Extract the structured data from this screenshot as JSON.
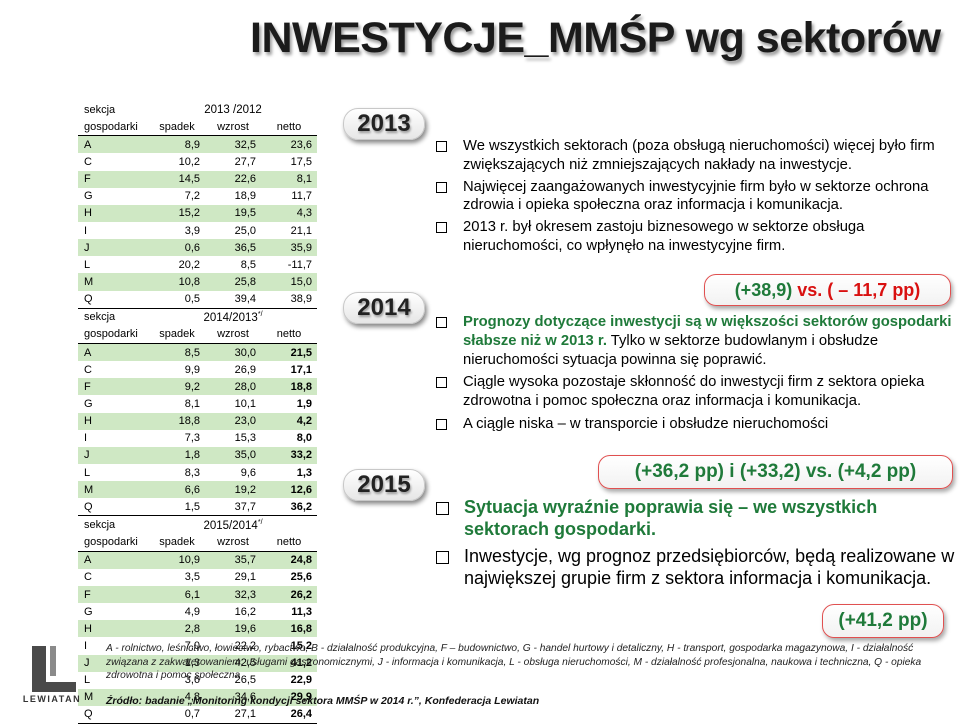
{
  "title": "INWESTYCJE_MMŚP wg sektorów",
  "table": {
    "sec_label_1": "sekcja",
    "sec_label_2": "gospodarki",
    "col_headers": [
      "spadek",
      "wzrost",
      "netto"
    ],
    "blocks": [
      {
        "period": "2013 /2012",
        "sup": "",
        "rows": [
          [
            "A",
            "8,9",
            "32,5",
            "23,6"
          ],
          [
            "C",
            "10,2",
            "27,7",
            "17,5"
          ],
          [
            "F",
            "14,5",
            "22,6",
            "8,1"
          ],
          [
            "G",
            "7,2",
            "18,9",
            "11,7"
          ],
          [
            "H",
            "15,2",
            "19,5",
            "4,3"
          ],
          [
            "I",
            "3,9",
            "25,0",
            "21,1"
          ],
          [
            "J",
            "0,6",
            "36,5",
            "35,9"
          ],
          [
            "L",
            "20,2",
            "8,5",
            "-11,7"
          ],
          [
            "M",
            "10,8",
            "25,8",
            "15,0"
          ],
          [
            "Q",
            "0,5",
            "39,4",
            "38,9"
          ]
        ]
      },
      {
        "period": "2014/2013",
        "sup": "*/",
        "rows": [
          [
            "A",
            "8,5",
            "30,0",
            "21,5"
          ],
          [
            "C",
            "9,9",
            "26,9",
            "17,1"
          ],
          [
            "F",
            "9,2",
            "28,0",
            "18,8"
          ],
          [
            "G",
            "8,1",
            "10,1",
            "1,9"
          ],
          [
            "H",
            "18,8",
            "23,0",
            "4,2"
          ],
          [
            "I",
            "7,3",
            "15,3",
            "8,0"
          ],
          [
            "J",
            "1,8",
            "35,0",
            "33,2"
          ],
          [
            "L",
            "8,3",
            "9,6",
            "1,3"
          ],
          [
            "M",
            "6,6",
            "19,2",
            "12,6"
          ],
          [
            "Q",
            "1,5",
            "37,7",
            "36,2"
          ]
        ]
      },
      {
        "period": "2015/2014",
        "sup": "*/",
        "rows": [
          [
            "A",
            "10,9",
            "35,7",
            "24,8"
          ],
          [
            "C",
            "3,5",
            "29,1",
            "25,6"
          ],
          [
            "F",
            "6,1",
            "32,3",
            "26,2"
          ],
          [
            "G",
            "4,9",
            "16,2",
            "11,3"
          ],
          [
            "H",
            "2,8",
            "19,6",
            "16,8"
          ],
          [
            "I",
            "7,0",
            "22,2",
            "15,2"
          ],
          [
            "J",
            "1,3",
            "42,5",
            "41,2"
          ],
          [
            "L",
            "3,6",
            "26,5",
            "22,9"
          ],
          [
            "M",
            "4,8",
            "34,6",
            "29,9"
          ],
          [
            "Q",
            "0,7",
            "27,1",
            "26,4"
          ]
        ]
      }
    ]
  },
  "years": [
    "2013",
    "2014",
    "2015"
  ],
  "bullets_2013": [
    "We wszystkich sektorach (poza obsługą nieruchomości) więcej było firm zwiększających niż zmniejszających nakłady na inwestycje.",
    "Najwięcej zaangażowanych inwestycyjnie firm było w sektorze ochrona zdrowia i opieka społeczna oraz informacja i komunikacja.",
    "2013 r. był okresem zastoju biznesowego w sektorze obsługa nieruchomości, co wpłynęło na inwestycyjne firm."
  ],
  "highlight_2013": {
    "a": "(+38,9)",
    "b": " vs. ",
    "c": "( – 11,7 pp)"
  },
  "bullets_2014": [
    {
      "lead": "Prognozy dotyczące inwestycji są w większości sektorów gospodarki słabsze niż w 2013 r.",
      "rest": " Tylko w sektorze budowlanym i obsłudze nieruchomości sytuacja powinna się poprawić."
    },
    {
      "lead": "",
      "rest": "Ciągle wysoka pozostaje skłonność do inwestycji firm z sektora opieka zdrowotna i pomoc społeczna oraz informacja i komunikacja."
    },
    {
      "lead": "",
      "rest": "A ciągle niska – w transporcie i obsłudze nieruchomości"
    }
  ],
  "highlight_2014": {
    "a": "(+36,2 pp) i (+33,2)",
    "b": " vs. ",
    "c": "(+4,2 pp)"
  },
  "bullets_2015": [
    {
      "lead": "Sytuacja wyraźnie poprawia się – we wszystkich sektorach gospodarki.",
      "rest": ""
    },
    {
      "lead": "",
      "rest": "Inwestycje, wg prognoz przedsiębiorców, będą realizowane w największej grupie firm z sektora informacja i komunikacja."
    }
  ],
  "highlight_2015": "(+41,2 pp)",
  "legend": "A - rolnictwo, leśnictwo, łowiectwo, rybactwo, B - działalność produkcyjna, F – budownictwo, G - handel hurtowy i detaliczny, H - transport, gospodarka magazynowa, I - działalność związana z zakwaterowaniem, usługami gastronomicznymi, J - informacja i komunikacja, L - obsługa nieruchomości, M - działalność profesjonalna, naukowa i techniczna, Q - opieka zdrowotna i pomoc społeczna",
  "source": "Źródło: badanie „Monitoring kondycji sektora MMŚP w 2014 r.”, Konfederacja Lewiatan",
  "logo_text": "LEWIATAN",
  "colors": {
    "row_green": "#cfe8c4",
    "accent_green": "#1f7a3a",
    "accent_red": "#d91010"
  }
}
